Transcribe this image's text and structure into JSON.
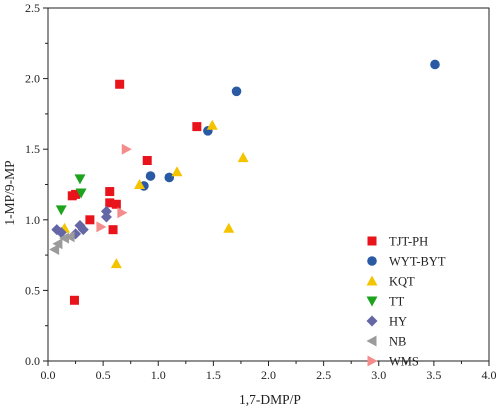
{
  "chart_data": {
    "type": "scatter",
    "title": "",
    "xlabel": "1,7-DMP/P",
    "ylabel": "1-MP/9-MP",
    "xlim": [
      0.0,
      4.0
    ],
    "ylim": [
      0.0,
      2.5
    ],
    "xticks": [
      "0.0",
      "0.5",
      "1.0",
      "1.5",
      "2.0",
      "2.5",
      "3.0",
      "3.5",
      "4.0"
    ],
    "yticks": [
      "0.0",
      "0.5",
      "1.0",
      "1.5",
      "2.0",
      "2.5"
    ],
    "grid": false,
    "legend_position": "right",
    "series": [
      {
        "name": "TJT-PH",
        "marker": "square",
        "color": "#e8131b",
        "x": [
          0.25,
          0.22,
          0.56,
          0.56,
          0.62,
          0.38,
          0.59,
          0.65,
          0.9,
          1.35,
          0.24
        ],
        "y": [
          1.18,
          1.17,
          1.2,
          1.12,
          1.11,
          1.0,
          0.93,
          1.96,
          1.42,
          1.66,
          0.43
        ]
      },
      {
        "name": "WYT-BYT",
        "marker": "circle",
        "color": "#2a5aa3",
        "x": [
          0.87,
          0.93,
          1.1,
          1.45,
          1.71,
          3.51
        ],
        "y": [
          1.24,
          1.31,
          1.3,
          1.63,
          1.91,
          2.1
        ]
      },
      {
        "name": "KQT",
        "marker": "triangle-up",
        "color": "#f5c400",
        "x": [
          0.15,
          0.62,
          0.83,
          1.17,
          1.49,
          1.64,
          1.77
        ],
        "y": [
          0.94,
          0.69,
          1.25,
          1.34,
          1.67,
          0.94,
          1.44
        ]
      },
      {
        "name": "TT",
        "marker": "triangle-down",
        "color": "#1da31d",
        "x": [
          0.12,
          0.29,
          0.3
        ],
        "y": [
          1.07,
          1.29,
          1.19
        ]
      },
      {
        "name": "HY",
        "marker": "diamond",
        "color": "#6466a6",
        "x": [
          0.08,
          0.12,
          0.25,
          0.29,
          0.32,
          0.53,
          0.53
        ],
        "y": [
          0.93,
          0.91,
          0.9,
          0.96,
          0.93,
          1.06,
          1.02
        ]
      },
      {
        "name": "NB",
        "marker": "triangle-left",
        "color": "#9b9b9b",
        "x": [
          0.06,
          0.09,
          0.15,
          0.2
        ],
        "y": [
          0.79,
          0.83,
          0.87,
          0.88
        ]
      },
      {
        "name": "WMS",
        "marker": "triangle-right",
        "color": "#f48c8c",
        "x": [
          0.48,
          0.67,
          0.71
        ],
        "y": [
          0.95,
          1.05,
          1.5
        ]
      }
    ]
  }
}
